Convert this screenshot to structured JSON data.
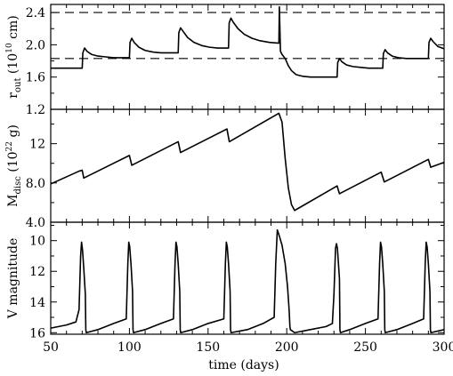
{
  "chart_data": {
    "type": "line",
    "xlabel": "time (days)",
    "xlim": [
      50,
      300
    ],
    "x_ticks": [
      "50",
      "100",
      "150",
      "200",
      "250",
      "300"
    ],
    "panels": [
      {
        "id": "r_out",
        "ylabel": {
          "main": "r",
          "sub": "out",
          "unit_pre": " (10",
          "sup": "10",
          "unit_post": " cm)"
        },
        "ylim": [
          1.2,
          2.5
        ],
        "y_ticks": [
          "1.2",
          "1.6",
          "2.0",
          "2.4"
        ],
        "y_tick_values": [
          1.2,
          1.6,
          2.0,
          2.4
        ],
        "reference_lines": [
          2.4,
          1.83
        ],
        "series": [
          {
            "x": [
              50,
              70,
              70.4,
              71.5,
              73,
              76,
              80,
              85,
              90,
              95,
              100,
              100.4,
              101.5,
              103,
              106,
              110,
              115,
              120,
              125,
              131,
              131.4,
              132.5,
              134,
              137,
              141,
              146,
              151,
              156,
              163,
              163.4,
              164.5,
              166,
              169,
              173,
              178,
              183,
              189,
              195,
              195.3,
              196,
              197,
              199,
              201,
              203,
              206,
              210,
              215,
              220,
              225,
              232,
              232.4,
              233.5,
              235,
              238,
              242,
              247,
              252,
              256,
              261,
              261.4,
              262.5,
              264,
              267,
              271,
              276,
              281,
              285,
              290,
              290.4,
              291.5,
              293,
              296,
              300
            ],
            "y": [
              1.71,
              1.71,
              1.9,
              1.96,
              1.92,
              1.88,
              1.86,
              1.85,
              1.84,
              1.84,
              1.84,
              2.03,
              2.08,
              2.03,
              1.97,
              1.93,
              1.91,
              1.9,
              1.9,
              1.9,
              2.15,
              2.21,
              2.17,
              2.09,
              2.03,
              1.99,
              1.97,
              1.96,
              1.96,
              2.27,
              2.33,
              2.28,
              2.2,
              2.13,
              2.08,
              2.05,
              2.03,
              2.02,
              2.47,
              1.92,
              1.88,
              1.83,
              1.74,
              1.68,
              1.63,
              1.61,
              1.6,
              1.6,
              1.6,
              1.6,
              1.78,
              1.83,
              1.79,
              1.75,
              1.73,
              1.72,
              1.71,
              1.71,
              1.71,
              1.89,
              1.94,
              1.9,
              1.86,
              1.84,
              1.83,
              1.83,
              1.83,
              1.83,
              2.03,
              2.08,
              2.04,
              1.98,
              1.95
            ]
          }
        ]
      },
      {
        "id": "M_disc",
        "ylabel": {
          "main": "M",
          "sub": "disc",
          "unit_pre": " (10",
          "sup": "22",
          "unit_post": " g)"
        },
        "ylim": [
          4.0,
          15.5
        ],
        "y_ticks": [
          "4.0",
          "8.0",
          "12"
        ],
        "y_tick_values": [
          4.0,
          8.0,
          12.0
        ],
        "series": [
          {
            "x": [
              50,
              68,
              70,
              71,
              100,
              101.5,
              131,
              132.5,
              162,
              163.5,
              195,
              197,
              199,
              201,
              203,
              205,
              232,
              233.5,
              260,
              262,
              290,
              291.5,
              300
            ],
            "y": [
              7.9,
              9.2,
              9.3,
              8.5,
              10.8,
              9.8,
              12.2,
              11.1,
              13.5,
              12.2,
              15.1,
              14.2,
              10.5,
              7.5,
              5.8,
              5.2,
              7.7,
              6.9,
              9.1,
              8.1,
              10.4,
              9.6,
              10.1
            ]
          }
        ]
      },
      {
        "id": "V_mag",
        "ylabel": {
          "main": "V magnitude"
        },
        "ylim": [
          16.1,
          8.8
        ],
        "y_ticks": [
          "10",
          "12",
          "14",
          "16"
        ],
        "y_tick_values": [
          10,
          12,
          14,
          16
        ],
        "series": [
          {
            "x": [
              50,
              55,
              60,
              66,
              68,
              69,
              69.6,
              70.2,
              71,
              72,
              72.3,
              72.6,
              80,
              90,
              98,
              99,
              99.6,
              100.2,
              101,
              102,
              102.3,
              102.6,
              110,
              120,
              128,
              129,
              129.6,
              130.2,
              131,
              132,
              132.3,
              132.6,
              140,
              150,
              160,
              161,
              161.6,
              162.2,
              163,
              164,
              164.3,
              164.6,
              175,
              185,
              192,
              193,
              194,
              195,
              197,
              199,
              200.5,
              201.5,
              202,
              202.3,
              205,
              215,
              225,
              229,
              230,
              231,
              231.6,
              232.2,
              233.5,
              233.8,
              234.1,
              240,
              250,
              258,
              259,
              259.6,
              260.2,
              261,
              262,
              262.3,
              262.6,
              270,
              280,
              287,
              288,
              288.6,
              289.2,
              290,
              291,
              291.3,
              291.6,
              300
            ],
            "y": [
              15.7,
              15.6,
              15.5,
              15.3,
              14.5,
              11.0,
              10.1,
              10.6,
              11.8,
              13.5,
              15.8,
              16.0,
              15.8,
              15.4,
              15.1,
              11.5,
              10.1,
              10.4,
              11.5,
              13.3,
              15.8,
              16.0,
              15.8,
              15.4,
              15.1,
              11.5,
              10.1,
              10.4,
              11.5,
              13.3,
              15.8,
              16.0,
              15.8,
              15.4,
              15.1,
              11.5,
              10.1,
              10.4,
              11.5,
              13.3,
              15.8,
              16.0,
              15.8,
              15.4,
              15.0,
              11.5,
              9.3,
              9.6,
              10.3,
              11.5,
              13.0,
              14.5,
              15.6,
              15.8,
              16.0,
              15.8,
              15.6,
              15.4,
              13.5,
              10.5,
              10.2,
              10.5,
              12.5,
              15.8,
              16.0,
              15.8,
              15.4,
              15.1,
              11.5,
              10.1,
              10.4,
              11.5,
              13.3,
              15.8,
              16.0,
              15.8,
              15.4,
              15.1,
              11.5,
              10.1,
              10.4,
              11.5,
              13.3,
              15.8,
              16.0,
              15.8
            ]
          }
        ]
      }
    ]
  }
}
